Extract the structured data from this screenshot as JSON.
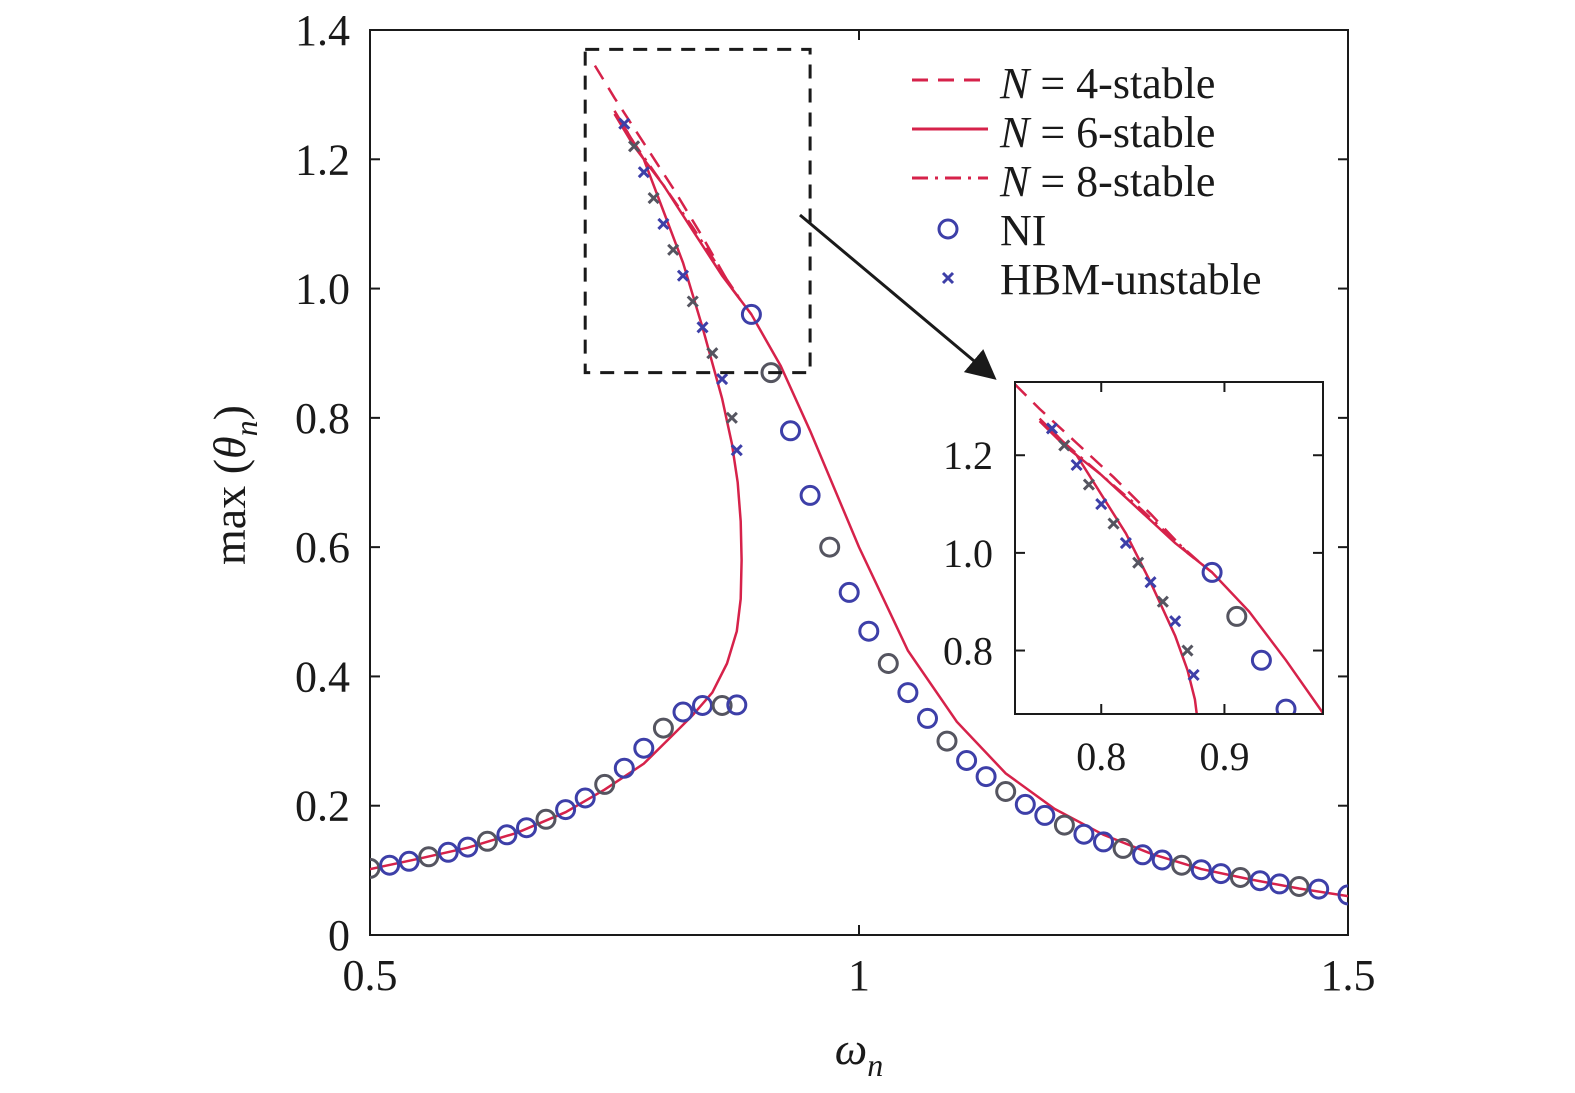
{
  "chart_data": {
    "type": "line",
    "xlabel_symbol": "ω",
    "xlabel_sub": "n",
    "ylabel_prefix": "max (",
    "ylabel_symbol": "θ",
    "ylabel_sub": "n",
    "ylabel_suffix": ")",
    "xlim": [
      0.5,
      1.5
    ],
    "ylim": [
      0,
      1.4
    ],
    "x_ticks": [
      "0.5",
      "1",
      "1.5"
    ],
    "y_ticks": [
      "0",
      "0.2",
      "0.4",
      "0.6",
      "0.8",
      "1.0",
      "1.2",
      "1.4"
    ],
    "grid": false,
    "legend_position": "top-right",
    "colors": {
      "stable": "#d6224a",
      "marker": "#3d3fa8",
      "marker_dark": "#555560",
      "axis": "#1a1a1a"
    },
    "legend": [
      {
        "sym": "N",
        "text": " = 4-stable",
        "style": "dashed"
      },
      {
        "sym": "N",
        "text": " = 6-stable",
        "style": "solid"
      },
      {
        "sym": "N",
        "text": " = 8-stable",
        "style": "dashdot"
      },
      {
        "sym": "",
        "text": "NI",
        "style": "circle"
      },
      {
        "sym": "",
        "text": "HBM-unstable",
        "style": "cross"
      }
    ],
    "zoom_box": {
      "x": [
        0.72,
        0.95
      ],
      "y": [
        0.87,
        1.37
      ]
    },
    "inset": {
      "xlim": [
        0.73,
        0.98
      ],
      "ylim": [
        0.67,
        1.35
      ],
      "x_ticks": [
        "0.8",
        "0.9"
      ],
      "y_ticks": [
        "0.8",
        "1.0",
        "1.2"
      ]
    },
    "series": [
      {
        "name": "N = 4-stable",
        "style": "dashed",
        "x": [
          0.73,
          0.75,
          0.78,
          0.81,
          0.84,
          0.87,
          0.89
        ],
        "y": [
          1.345,
          1.295,
          1.225,
          1.155,
          1.08,
          1.0,
          0.96
        ]
      },
      {
        "name": "N = 6-stable",
        "style": "solid",
        "x": [
          0.5,
          0.55,
          0.6,
          0.65,
          0.7,
          0.74,
          0.78,
          0.81,
          0.83,
          0.85,
          0.865,
          0.875,
          0.879,
          0.88,
          0.879,
          0.876,
          0.87,
          0.86,
          0.84,
          0.82,
          0.8,
          0.78,
          0.76,
          0.75,
          0.77,
          0.8,
          0.83,
          0.86,
          0.89,
          0.92,
          0.95,
          1.0,
          1.05,
          1.1,
          1.15,
          1.2,
          1.25,
          1.3,
          1.35,
          1.4,
          1.45,
          1.5
        ],
        "y": [
          0.102,
          0.118,
          0.135,
          0.158,
          0.19,
          0.225,
          0.265,
          0.31,
          0.34,
          0.375,
          0.42,
          0.47,
          0.52,
          0.58,
          0.64,
          0.7,
          0.76,
          0.83,
          0.94,
          1.04,
          1.12,
          1.2,
          1.25,
          1.27,
          1.22,
          1.16,
          1.09,
          1.02,
          0.96,
          0.88,
          0.78,
          0.6,
          0.44,
          0.33,
          0.25,
          0.195,
          0.155,
          0.125,
          0.102,
          0.086,
          0.072,
          0.06
        ]
      },
      {
        "name": "N = 8-stable",
        "style": "dashdot",
        "x": [
          0.75,
          0.77,
          0.8,
          0.83,
          0.86,
          0.88
        ],
        "y": [
          1.275,
          1.225,
          1.16,
          1.095,
          1.025,
          0.98
        ]
      },
      {
        "name": "NI",
        "style": "circle",
        "x": [
          0.5,
          0.52,
          0.54,
          0.56,
          0.58,
          0.6,
          0.62,
          0.64,
          0.66,
          0.68,
          0.7,
          0.72,
          0.74,
          0.76,
          0.78,
          0.8,
          0.82,
          0.84,
          0.86,
          0.875,
          0.89,
          0.91,
          0.93,
          0.95,
          0.97,
          0.99,
          1.01,
          1.03,
          1.05,
          1.07,
          1.09,
          1.11,
          1.13,
          1.15,
          1.17,
          1.19,
          1.21,
          1.23,
          1.25,
          1.27,
          1.29,
          1.31,
          1.33,
          1.35,
          1.37,
          1.39,
          1.41,
          1.43,
          1.45,
          1.47,
          1.5
        ],
        "y": [
          0.103,
          0.108,
          0.114,
          0.121,
          0.128,
          0.136,
          0.145,
          0.155,
          0.166,
          0.179,
          0.194,
          0.212,
          0.233,
          0.258,
          0.289,
          0.32,
          0.345,
          0.355,
          0.355,
          0.356,
          0.96,
          0.87,
          0.78,
          0.68,
          0.6,
          0.53,
          0.47,
          0.42,
          0.375,
          0.335,
          0.3,
          0.27,
          0.245,
          0.222,
          0.202,
          0.185,
          0.17,
          0.156,
          0.144,
          0.134,
          0.124,
          0.116,
          0.108,
          0.101,
          0.095,
          0.089,
          0.084,
          0.079,
          0.075,
          0.071,
          0.062
        ]
      },
      {
        "name": "HBM-unstable",
        "style": "cross",
        "x": [
          0.76,
          0.77,
          0.78,
          0.79,
          0.8,
          0.81,
          0.82,
          0.83,
          0.84,
          0.85,
          0.86,
          0.87,
          0.875
        ],
        "y": [
          1.255,
          1.22,
          1.18,
          1.14,
          1.1,
          1.06,
          1.02,
          0.98,
          0.94,
          0.9,
          0.86,
          0.8,
          0.75
        ]
      }
    ]
  }
}
